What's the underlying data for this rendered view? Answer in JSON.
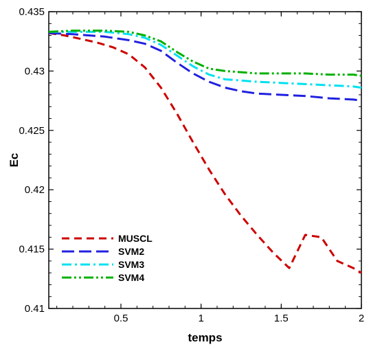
{
  "chart_data": {
    "type": "line",
    "title": "",
    "xlabel": "temps",
    "ylabel": "Ec",
    "xlim": [
      0.05,
      2.0
    ],
    "ylim": [
      0.41,
      0.435
    ],
    "xticks": [
      0.5,
      1,
      1.5,
      2
    ],
    "xtick_labels": [
      "0.5",
      "1",
      "1.5",
      "2"
    ],
    "yticks": [
      0.41,
      0.415,
      0.42,
      0.425,
      0.43,
      0.435
    ],
    "ytick_labels": [
      "0.41",
      "0.415",
      "0.42",
      "0.425",
      "0.43",
      "0.435"
    ],
    "grid": false,
    "legend_position": "bottom-left",
    "series": [
      {
        "name": "MUSCL",
        "color": "#cc0000",
        "dash": "dashed",
        "x": [
          0.05,
          0.15,
          0.25,
          0.35,
          0.45,
          0.55,
          0.65,
          0.75,
          0.85,
          0.95,
          1.05,
          1.15,
          1.25,
          1.35,
          1.45,
          1.55,
          1.65,
          1.75,
          1.85,
          1.95,
          2.0
        ],
        "y": [
          0.4332,
          0.433,
          0.4327,
          0.4324,
          0.432,
          0.4314,
          0.4303,
          0.4286,
          0.4264,
          0.424,
          0.4217,
          0.4196,
          0.4178,
          0.4162,
          0.4147,
          0.4134,
          0.4162,
          0.416,
          0.414,
          0.4134,
          0.413
        ]
      },
      {
        "name": "SVM2",
        "color": "#2020e0",
        "dash": "longdash",
        "x": [
          0.05,
          0.2,
          0.4,
          0.55,
          0.65,
          0.75,
          0.85,
          0.95,
          1.05,
          1.15,
          1.25,
          1.35,
          1.5,
          1.65,
          1.8,
          1.95,
          2.0
        ],
        "y": [
          0.4332,
          0.4331,
          0.4329,
          0.4326,
          0.4323,
          0.4317,
          0.4307,
          0.4298,
          0.4291,
          0.4286,
          0.4283,
          0.4281,
          0.428,
          0.4279,
          0.4277,
          0.4276,
          0.4275
        ]
      },
      {
        "name": "SVM3",
        "color": "#00e0f0",
        "dash": "dashdot",
        "x": [
          0.05,
          0.2,
          0.4,
          0.55,
          0.65,
          0.75,
          0.85,
          0.95,
          1.05,
          1.15,
          1.25,
          1.35,
          1.5,
          1.65,
          1.8,
          1.95,
          2.0
        ],
        "y": [
          0.4333,
          0.4333,
          0.4333,
          0.4331,
          0.4328,
          0.4322,
          0.4313,
          0.4304,
          0.4297,
          0.4293,
          0.4292,
          0.4291,
          0.429,
          0.4289,
          0.4288,
          0.4287,
          0.4286
        ]
      },
      {
        "name": "SVM4",
        "color": "#00b000",
        "dash": "dashdotdot",
        "x": [
          0.05,
          0.2,
          0.4,
          0.55,
          0.65,
          0.75,
          0.85,
          0.95,
          1.05,
          1.15,
          1.25,
          1.35,
          1.5,
          1.65,
          1.8,
          1.95,
          2.0
        ],
        "y": [
          0.4333,
          0.4334,
          0.4334,
          0.4333,
          0.433,
          0.4325,
          0.4316,
          0.4308,
          0.4302,
          0.43,
          0.4299,
          0.4298,
          0.4298,
          0.4298,
          0.4297,
          0.4297,
          0.4296
        ]
      }
    ]
  }
}
